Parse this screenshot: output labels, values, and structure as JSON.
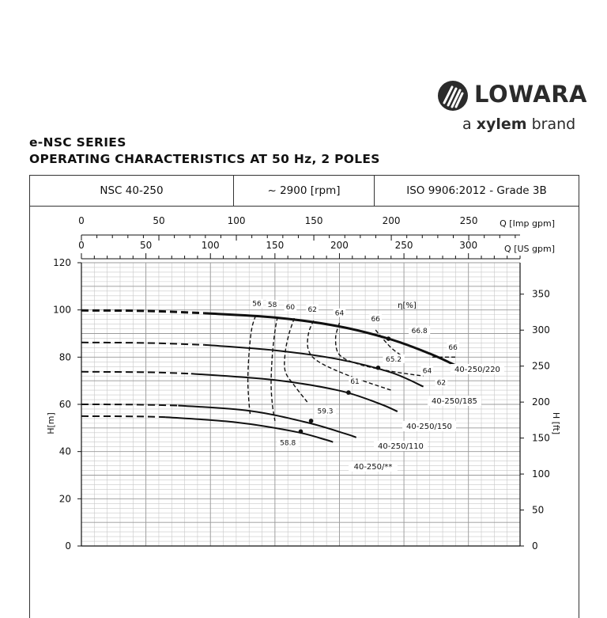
{
  "brand": {
    "name": "LOWARA",
    "tagline_prefix": "a ",
    "tagline_bold": "xylem",
    "tagline_suffix": " brand"
  },
  "header": {
    "series": "e-NSC SERIES",
    "subtitle": "OPERATING CHARACTERISTICS AT 50 Hz, 2 POLES"
  },
  "info": {
    "model": "NSC 40-250",
    "speed": "~ 2900 [rpm]",
    "standard": "ISO 9906:2012 - Grade 3B"
  },
  "colors": {
    "ink": "#111111",
    "grid": "#9a9a9a",
    "grid_minor": "#c8c8c8"
  },
  "chart_data": {
    "type": "line",
    "x_label_us": "Q [US gpm]",
    "x_label_imp": "Q [Imp gpm]",
    "y_label_left": "H[m]",
    "y_label_right": "H [ft]",
    "efficiency_label": "η[%]",
    "xlim_us": [
      0,
      340
    ],
    "ylim_m": [
      0,
      120
    ],
    "x_ticks_us": [
      0,
      50,
      100,
      150,
      200,
      250,
      300
    ],
    "x_ticks_imp": [
      0,
      50,
      100,
      150,
      200,
      250
    ],
    "y_ticks_m": [
      0,
      20,
      40,
      60,
      80,
      100,
      120
    ],
    "y_ticks_ft": [
      0,
      50,
      100,
      150,
      200,
      250,
      300,
      350
    ],
    "series": [
      {
        "name": "40-250/220",
        "dashed_x": [
          0,
          50,
          95
        ],
        "dashed_y": [
          99.8,
          99.6,
          98.6
        ],
        "solid_x": [
          95,
          150,
          200,
          240,
          270,
          290
        ],
        "solid_y": [
          98.6,
          96.8,
          93.0,
          87.5,
          81.5,
          76.5
        ],
        "op_x": 238,
        "op_y": 87.8
      },
      {
        "name": "40-250/185",
        "dashed_x": [
          0,
          50,
          95
        ],
        "dashed_y": [
          86.2,
          86.0,
          85.2
        ],
        "solid_x": [
          95,
          150,
          200,
          240,
          265
        ],
        "solid_y": [
          85.2,
          82.9,
          79.0,
          73.5,
          67.5
        ],
        "op_x": 230,
        "op_y": 75.5
      },
      {
        "name": "40-250/150",
        "dashed_x": [
          0,
          50,
          85
        ],
        "dashed_y": [
          73.8,
          73.6,
          73.0
        ],
        "solid_x": [
          85,
          150,
          200,
          230,
          245
        ],
        "solid_y": [
          73.0,
          70.3,
          65.8,
          60.5,
          57.0
        ],
        "op_x": 207,
        "op_y": 65.0
      },
      {
        "name": "40-250/110",
        "dashed_x": [
          0,
          40,
          75
        ],
        "dashed_y": [
          60.0,
          59.9,
          59.5
        ],
        "solid_x": [
          75,
          130,
          175,
          205,
          213
        ],
        "solid_y": [
          59.5,
          57.3,
          52.3,
          47.5,
          46.0
        ],
        "op_x": 178,
        "op_y": 53.0
      },
      {
        "name": "40-250/**",
        "dashed_x": [
          0,
          40,
          65
        ],
        "dashed_y": [
          55.0,
          54.9,
          54.6
        ],
        "solid_x": [
          65,
          120,
          165,
          190,
          195
        ],
        "solid_y": [
          54.6,
          52.4,
          48.5,
          44.9,
          44.0
        ],
        "op_x": 170,
        "op_y": 48.5
      }
    ],
    "efficiency_curves": [
      {
        "label": "56",
        "x": [
          135,
          132,
          130,
          129,
          130,
          131
        ],
        "y": [
          97.5,
          92.0,
          82.0,
          70.0,
          60.0,
          55.0
        ]
      },
      {
        "label": "58",
        "x": [
          152,
          150,
          148,
          147,
          148,
          150
        ],
        "y": [
          97.0,
          91.0,
          81.0,
          69.0,
          60.0,
          53.0
        ]
      },
      {
        "label": "60",
        "x": [
          165,
          161,
          158,
          158,
          165,
          175
        ],
        "y": [
          96.5,
          90.0,
          82.0,
          74.0,
          68.0,
          61.0
        ]
      },
      {
        "label": "62",
        "x": [
          180,
          176,
          176,
          184,
          208,
          240
        ],
        "y": [
          95.5,
          90.0,
          83.0,
          78.0,
          72.0,
          66.0
        ]
      },
      {
        "label": "64",
        "x": [
          200,
          197,
          200,
          215,
          240,
          265
        ],
        "y": [
          94.5,
          88.0,
          81.0,
          77.0,
          74.0,
          72.0
        ]
      },
      {
        "label": "66",
        "x": [
          228,
          240,
          250
        ],
        "y": [
          91.5,
          84.0,
          80.0
        ]
      },
      {
        "label": "66",
        "x": [
          272,
          290
        ],
        "y": [
          80.0,
          80.0
        ]
      }
    ],
    "annotations": [
      {
        "text": "56",
        "x": 136,
        "y": 102.0
      },
      {
        "text": "58",
        "x": 148,
        "y": 101.5
      },
      {
        "text": "60",
        "x": 162,
        "y": 100.5
      },
      {
        "text": "62",
        "x": 179,
        "y": 99.5
      },
      {
        "text": "64",
        "x": 200,
        "y": 98.0
      },
      {
        "text": "66",
        "x": 228,
        "y": 95.5
      },
      {
        "text": "66.8",
        "x": 262,
        "y": 90.5
      },
      {
        "text": "66",
        "x": 288,
        "y": 83.5
      },
      {
        "text": "65.2",
        "x": 242,
        "y": 78.5
      },
      {
        "text": "64",
        "x": 268,
        "y": 73.5
      },
      {
        "text": "62",
        "x": 279,
        "y": 68.5
      },
      {
        "text": "61",
        "x": 212,
        "y": 69.0
      },
      {
        "text": "59.3",
        "x": 189,
        "y": 56.5
      },
      {
        "text": "58.8",
        "x": 160,
        "y": 43.0
      }
    ]
  }
}
